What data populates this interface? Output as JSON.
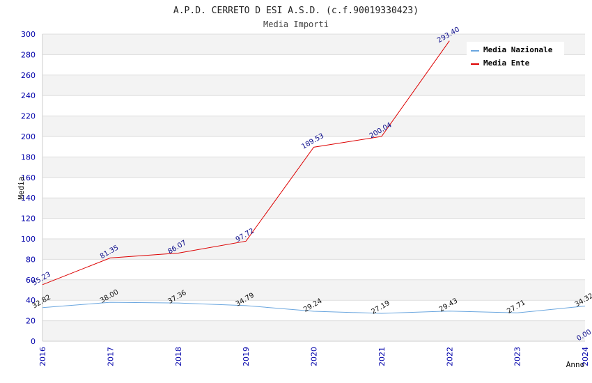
{
  "chart_data": {
    "type": "line",
    "title": "A.P.D. CERRETO D ESI A.S.D. (c.f.90019330423)",
    "subtitle": "Media Importi",
    "xlabel": "Anno",
    "ylabel": "Media",
    "categories": [
      "2016",
      "2017",
      "2018",
      "2019",
      "2020",
      "2021",
      "2022",
      "2023",
      "2024"
    ],
    "ylim": [
      0,
      300
    ],
    "yticks": [
      0,
      20,
      40,
      60,
      80,
      100,
      120,
      140,
      160,
      180,
      200,
      220,
      240,
      260,
      280,
      300
    ],
    "grid": "horizontal bands",
    "legend_position": "top-right",
    "series": [
      {
        "name": "Media Nazionale",
        "color": "#6aa6df",
        "values": [
          32.82,
          38.0,
          37.36,
          34.79,
          29.24,
          27.19,
          29.43,
          27.71,
          34.32
        ],
        "labels": [
          "32.82",
          "38.00",
          "37.36",
          "34.79",
          "29.24",
          "27.19",
          "29.43",
          "27.71",
          "34.32"
        ]
      },
      {
        "name": "Media Ente",
        "color": "#dd0000",
        "values": [
          55.23,
          81.35,
          86.07,
          97.72,
          189.53,
          200.04,
          293.4,
          null,
          0.0
        ],
        "labels": [
          "55.23",
          "81.35",
          "86.07",
          "97.72",
          "189.53",
          "200.04",
          "293.40",
          "",
          "0.00"
        ]
      }
    ]
  }
}
